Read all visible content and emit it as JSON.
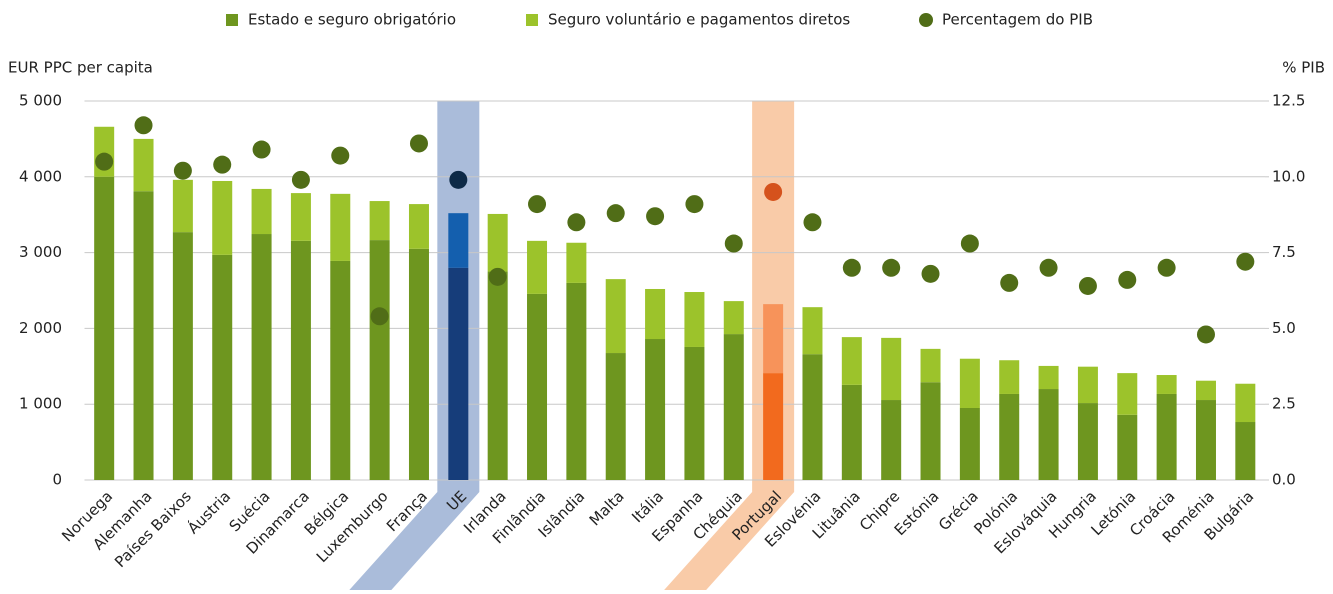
{
  "chart_data": {
    "type": "bar",
    "stacked": true,
    "y_label": "EUR PPC per capita",
    "y2_label": "% PIB",
    "categories": [
      "Noruega",
      "Alemanha",
      "Países Baixos",
      "Áustria",
      "Suécia",
      "Dinamarca",
      "Bélgica",
      "Luxemburgo",
      "França",
      "UE",
      "Irlanda",
      "Finlândia",
      "Islândia",
      "Malta",
      "Itália",
      "Espanha",
      "Chéquia",
      "Portugal",
      "Eslovénia",
      "Lituânia",
      "Chipre",
      "Estónia",
      "Grécia",
      "Polónia",
      "Eslováquia",
      "Hungria",
      "Letónia",
      "Croácia",
      "Roménia",
      "Bulgária"
    ],
    "series": [
      {
        "name": "Estado e seguro obrigatório",
        "color": "#6e961f",
        "values": [
          4000,
          3810,
          3270,
          2970,
          3245,
          3155,
          2890,
          3165,
          3050,
          2800,
          2750,
          2455,
          2600,
          1675,
          1860,
          1755,
          1925,
          1410,
          1660,
          1255,
          1055,
          1290,
          950,
          1135,
          1200,
          1015,
          860,
          1135,
          1055,
          765
        ]
      },
      {
        "name": "Seguro voluntário e pagamentos diretos",
        "color": "#9cc32b",
        "values": [
          660,
          690,
          690,
          975,
          595,
          630,
          885,
          515,
          590,
          720,
          760,
          700,
          530,
          975,
          660,
          725,
          435,
          910,
          620,
          630,
          820,
          440,
          650,
          445,
          305,
          480,
          550,
          250,
          255,
          505
        ]
      },
      {
        "name": "Percentagem do PIB",
        "color": "#506d17",
        "type": "scatter",
        "axis": "y2",
        "values": [
          10.5,
          11.7,
          10.2,
          10.4,
          10.9,
          9.9,
          10.7,
          5.4,
          11.1,
          9.9,
          6.7,
          9.1,
          8.5,
          8.8,
          8.7,
          9.1,
          7.8,
          9.5,
          8.5,
          7.0,
          7.0,
          6.8,
          7.8,
          6.5,
          7.0,
          6.4,
          6.6,
          7.0,
          4.8,
          7.2
        ]
      }
    ],
    "highlights": [
      {
        "category": "UE",
        "colors": [
          "#163d7a",
          "#145fae",
          "#0e2a47"
        ],
        "band": "#aabcda"
      },
      {
        "category": "Portugal",
        "colors": [
          "#f26a1e",
          "#f7935a",
          "#d5521c"
        ],
        "band": "#f9cba8"
      }
    ],
    "ylim": [
      0,
      5000
    ],
    "yticks": [
      0,
      {
        "value": 1000,
        "label": "1 000"
      },
      {
        "value": 2000,
        "label": "2 000"
      },
      {
        "value": 3000,
        "label": "3 000"
      },
      {
        "value": 4000,
        "label": "4 000"
      },
      {
        "value": 5000,
        "label": "5 000"
      }
    ],
    "y2lim": [
      0,
      12.5
    ],
    "y2ticks": [
      {
        "value": 0,
        "label": "0.0"
      },
      2.5,
      {
        "value": 5,
        "label": "5.0"
      },
      7.5,
      {
        "value": 10,
        "label": "10.0"
      },
      12.5
    ],
    "grid": true,
    "legend": "top"
  }
}
